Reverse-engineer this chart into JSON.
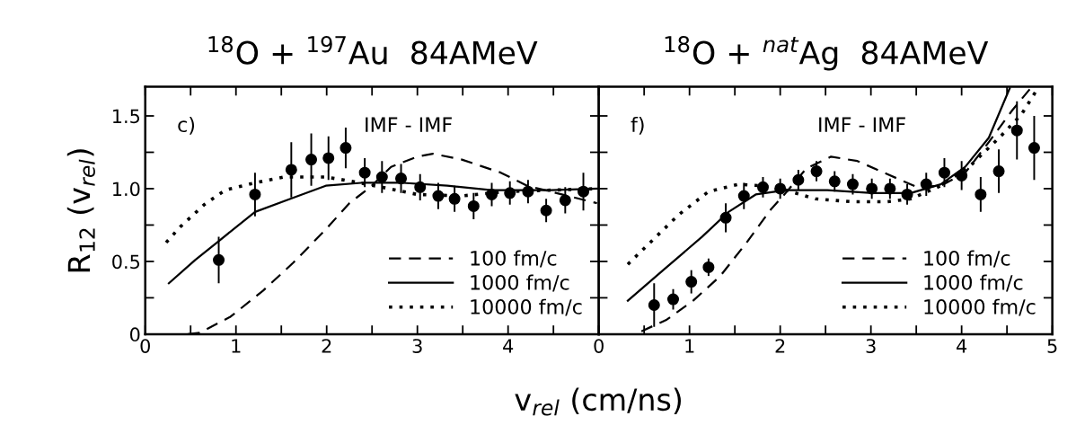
{
  "chart_data": [
    {
      "type": "line",
      "title": "$^{18}$O + $^{197}$Au  84AMeV",
      "xlabel": "v$_{rel}$ (cm/ns)",
      "ylabel": "R$_{12}$ (v$_{rel}$)",
      "annotations": [
        "c)",
        "IMF - IMF"
      ],
      "xlim": [
        0,
        5
      ],
      "ylim": [
        0,
        1.7
      ],
      "xticks": [
        0,
        {
          "value": 0.5,
          "label": null
        },
        1,
        {
          "value": 1.5,
          "label": null
        },
        2,
        {
          "value": 2.5,
          "label": null
        },
        3,
        {
          "value": 3.5,
          "label": null
        },
        4,
        {
          "value": 4.5,
          "label": null
        },
        {
          "value": 5,
          "label": null
        }
      ],
      "yticks": [
        0,
        {
          "value": 0.25,
          "label": null
        },
        {
          "value": 0.5,
          "label": "0.5"
        },
        {
          "value": 0.75,
          "label": null
        },
        {
          "value": 1.0,
          "label": "1.0"
        },
        {
          "value": 1.25,
          "label": null
        },
        {
          "value": 1.5,
          "label": "1.5"
        }
      ],
      "grid": false,
      "legend": "bottom right",
      "series": [
        {
          "type": "scatter",
          "color": "#000000",
          "marker": "circle",
          "x": [
            0.81,
            1.21,
            1.61,
            1.83,
            2.02,
            2.21,
            2.42,
            2.61,
            2.82,
            3.03,
            3.23,
            3.41,
            3.62,
            3.82,
            4.02,
            4.22,
            4.42,
            4.63,
            4.83
          ],
          "values": [
            0.51,
            0.96,
            1.13,
            1.2,
            1.21,
            1.28,
            1.11,
            1.08,
            1.07,
            1.01,
            0.95,
            0.93,
            0.88,
            0.96,
            0.97,
            0.98,
            0.85,
            0.92,
            0.98
          ],
          "errors": [
            0.16,
            0.15,
            0.19,
            0.18,
            0.15,
            0.14,
            0.1,
            0.11,
            0.1,
            0.09,
            0.09,
            0.09,
            0.09,
            0.08,
            0.08,
            0.08,
            0.08,
            0.09,
            0.13
          ]
        },
        {
          "name": "100 fm/c",
          "line_style": "dashed",
          "color": "#000000",
          "x": [
            0.47,
            0.6,
            0.94,
            1.3,
            1.63,
            1.99,
            2.25,
            2.48,
            2.71,
            3.0,
            3.17,
            3.49,
            3.92,
            4.21,
            4.47,
            4.98
          ],
          "values": [
            0,
            0.01,
            0.12,
            0.3,
            0.49,
            0.72,
            0.9,
            1.01,
            1.15,
            1.22,
            1.24,
            1.2,
            1.11,
            1.02,
            0.98,
            0.9
          ]
        },
        {
          "name": "1000 fm/c",
          "line_style": "solid",
          "color": "#000000",
          "x": [
            0.26,
            0.55,
            0.81,
            1.21,
            1.6,
            1.99,
            2.38,
            2.84,
            3.33,
            3.82,
            4.47,
            4.98
          ],
          "values": [
            0.35,
            0.51,
            0.64,
            0.84,
            0.93,
            1.02,
            1.04,
            1.04,
            1.02,
            0.99,
            0.99,
            1.0
          ]
        },
        {
          "name": "10000 fm/c",
          "line_style": "dotted",
          "color": "#000000",
          "x": [
            0.23,
            0.39,
            0.65,
            0.88,
            1.21,
            1.53,
            1.99,
            2.28,
            2.61,
            3.0,
            3.49,
            3.98,
            4.47,
            4.98
          ],
          "values": [
            0.63,
            0.74,
            0.89,
            0.99,
            1.04,
            1.08,
            1.08,
            1.05,
            1.01,
            0.96,
            0.95,
            0.98,
            0.99,
            1.0
          ]
        }
      ]
    },
    {
      "type": "line",
      "title": "$^{18}$O + $^{nat}$Ag  84AMeV",
      "annotations": [
        "f)",
        "IMF - IMF"
      ],
      "xlim": [
        0,
        5
      ],
      "ylim": [
        0,
        1.7
      ],
      "tick_labels": "x",
      "xticks": [
        0,
        {
          "value": 0.5,
          "label": null
        },
        1,
        {
          "value": 1.5,
          "label": null
        },
        2,
        {
          "value": 2.5,
          "label": null
        },
        3,
        {
          "value": 3.5,
          "label": null
        },
        4,
        {
          "value": 4.5,
          "label": null
        },
        5
      ],
      "yticks": [
        {
          "value": 0,
          "label": null
        },
        {
          "value": 0.25,
          "label": null
        },
        {
          "value": 0.5,
          "label": null
        },
        {
          "value": 0.75,
          "label": null
        },
        {
          "value": 1.0,
          "label": null
        },
        {
          "value": 1.25,
          "label": null
        },
        {
          "value": 1.5,
          "label": null
        }
      ],
      "grid": false,
      "legend": "bottom right",
      "series": [
        {
          "type": "scatter",
          "color": "#000000",
          "marker": "circle",
          "x": [
            0.61,
            0.82,
            1.02,
            1.21,
            1.4,
            1.6,
            1.81,
            2.0,
            2.2,
            2.4,
            2.6,
            2.8,
            3.01,
            3.21,
            3.4,
            3.61,
            3.81,
            4.0,
            4.21,
            4.41,
            4.61,
            4.8
          ],
          "values": [
            0.2,
            0.24,
            0.36,
            0.46,
            0.8,
            0.95,
            1.01,
            1.0,
            1.06,
            1.12,
            1.05,
            1.03,
            1.0,
            1.0,
            0.96,
            1.03,
            1.11,
            1.09,
            0.96,
            1.12,
            1.4,
            1.28
          ],
          "errors": [
            0.15,
            0.07,
            0.08,
            0.06,
            0.1,
            0.09,
            0.07,
            0.07,
            0.07,
            0.07,
            0.07,
            0.07,
            0.07,
            0.07,
            0.07,
            0.08,
            0.1,
            0.1,
            0.12,
            0.15,
            0.2,
            0.22
          ]
        },
        {
          "name": "100 fm/c",
          "line_style": "dashed",
          "color": "#000000",
          "x": [
            0.47,
            0.75,
            1.04,
            1.34,
            1.63,
            1.9,
            2.06,
            2.29,
            2.56,
            2.85,
            3.18,
            3.51,
            3.77,
            4.04,
            4.3,
            4.56,
            4.76
          ],
          "values": [
            0.02,
            0.1,
            0.23,
            0.4,
            0.63,
            0.86,
            0.97,
            1.14,
            1.22,
            1.19,
            1.1,
            1.01,
            1.02,
            1.11,
            1.32,
            1.54,
            1.69
          ]
        },
        {
          "name": "1000 fm/c",
          "line_style": "solid",
          "color": "#000000",
          "x": [
            0.32,
            0.71,
            1.14,
            1.43,
            1.73,
            2.06,
            2.52,
            3.02,
            3.44,
            3.77,
            4.04,
            4.3,
            4.53
          ],
          "values": [
            0.23,
            0.44,
            0.67,
            0.84,
            0.96,
            0.99,
            0.99,
            0.97,
            0.97,
            1.03,
            1.15,
            1.35,
            1.69
          ]
        },
        {
          "name": "10000 fm/c",
          "line_style": "dotted",
          "color": "#000000",
          "x": [
            0.32,
            0.55,
            0.88,
            1.21,
            1.54,
            1.8,
            2.06,
            2.39,
            2.79,
            3.18,
            3.44,
            3.77,
            4.1,
            4.43,
            4.66,
            4.83
          ],
          "values": [
            0.48,
            0.62,
            0.82,
            0.98,
            1.03,
            1.02,
            0.99,
            0.93,
            0.91,
            0.91,
            0.93,
            1.02,
            1.16,
            1.36,
            1.51,
            1.68
          ]
        }
      ]
    }
  ]
}
